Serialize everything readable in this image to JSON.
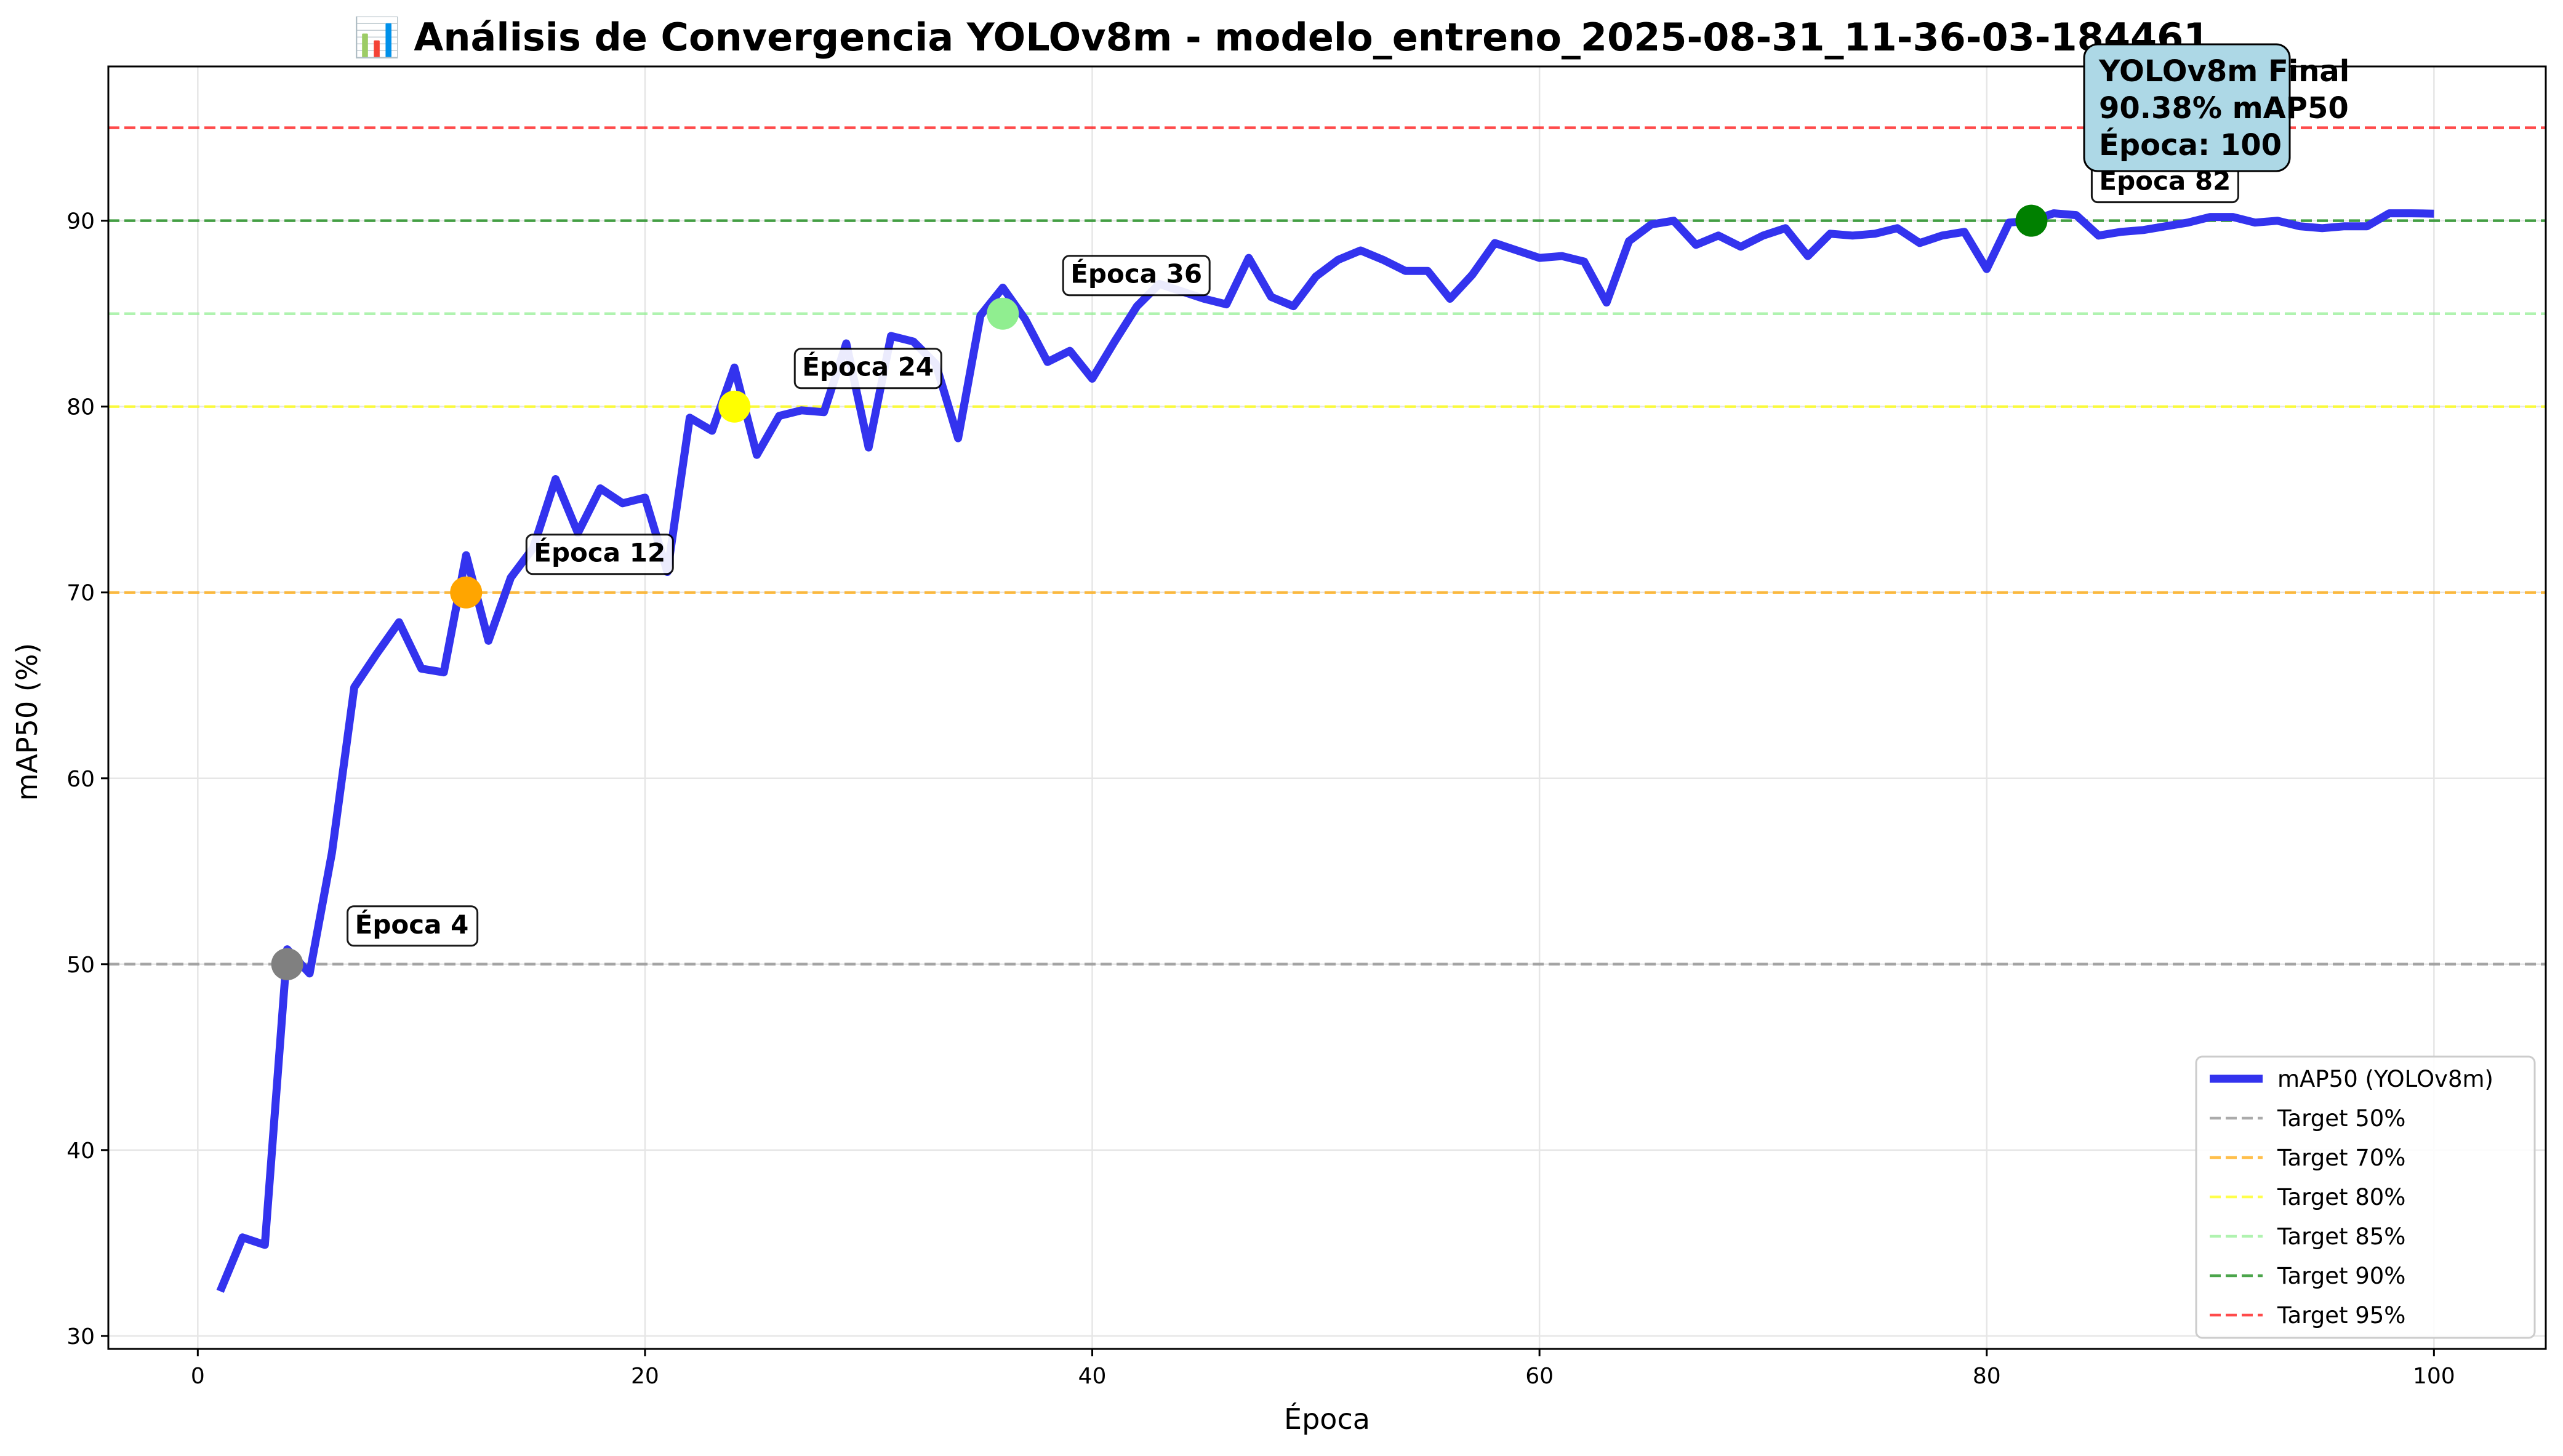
{
  "chart_data": {
    "type": "line",
    "title": "📊 Análisis de Convergencia YOLOv8m - modelo_entreno_2025-08-31_11-36-03-184461",
    "xlabel": "Época",
    "ylabel": "mAP50 (%)",
    "xlim": [
      -4,
      105
    ],
    "ylim": [
      29.3,
      98.3
    ],
    "xticks": [
      0,
      20,
      40,
      60,
      80,
      100
    ],
    "yticks": [
      30,
      40,
      50,
      60,
      70,
      80,
      90
    ],
    "grid": true,
    "legend_position": "lower-right",
    "series": [
      {
        "name": "mAP50 (YOLOv8m)",
        "color": "#3333ee",
        "x": [
          1,
          2,
          3,
          4,
          5,
          6,
          7,
          8,
          9,
          10,
          11,
          12,
          13,
          14,
          15,
          16,
          17,
          18,
          19,
          20,
          21,
          22,
          23,
          24,
          25,
          26,
          27,
          28,
          29,
          30,
          31,
          32,
          33,
          34,
          35,
          36,
          37,
          38,
          39,
          40,
          41,
          42,
          43,
          44,
          45,
          46,
          47,
          48,
          49,
          50,
          51,
          52,
          53,
          54,
          55,
          56,
          57,
          58,
          59,
          60,
          61,
          62,
          63,
          64,
          65,
          66,
          67,
          68,
          69,
          70,
          71,
          72,
          73,
          74,
          75,
          76,
          77,
          78,
          79,
          80,
          81,
          82,
          83,
          84,
          85,
          86,
          87,
          88,
          89,
          90,
          91,
          92,
          93,
          94,
          95,
          96,
          97,
          98,
          99,
          100
        ],
        "values": [
          32.4,
          35.3,
          34.9,
          50.8,
          49.5,
          56.0,
          64.9,
          66.7,
          68.4,
          65.9,
          65.7,
          72.0,
          67.4,
          70.8,
          72.4,
          76.1,
          73.2,
          75.6,
          74.8,
          75.1,
          71.1,
          79.4,
          78.7,
          82.1,
          77.4,
          79.5,
          79.8,
          79.7,
          83.4,
          77.8,
          83.8,
          83.5,
          82.3,
          78.3,
          84.9,
          86.4,
          84.7,
          82.4,
          83.0,
          81.5,
          83.5,
          85.4,
          86.6,
          86.2,
          85.8,
          85.5,
          88.0,
          85.9,
          85.4,
          87.0,
          87.9,
          88.4,
          87.9,
          87.3,
          87.3,
          85.8,
          87.1,
          88.8,
          88.4,
          88.0,
          88.1,
          87.8,
          85.6,
          88.9,
          89.8,
          90.0,
          88.7,
          89.2,
          88.6,
          89.2,
          89.6,
          88.1,
          89.3,
          89.2,
          89.3,
          89.6,
          88.8,
          89.2,
          89.4,
          87.4,
          89.9,
          90.0,
          90.4,
          90.3,
          89.2,
          89.4,
          89.5,
          89.7,
          89.9,
          90.2,
          90.2,
          89.9,
          90.0,
          89.7,
          89.6,
          89.7,
          89.7,
          90.4,
          90.4,
          90.38
        ]
      }
    ],
    "targets": [
      {
        "name": "Target 50%",
        "value": 50,
        "color": "#888888"
      },
      {
        "name": "Target 70%",
        "value": 70,
        "color": "#ffa500"
      },
      {
        "name": "Target 80%",
        "value": 80,
        "color": "#ffff00"
      },
      {
        "name": "Target 85%",
        "value": 85,
        "color": "#90ee90"
      },
      {
        "name": "Target 90%",
        "value": 90,
        "color": "#008000"
      },
      {
        "name": "Target 95%",
        "value": 95,
        "color": "#ff0000"
      }
    ],
    "milestones": [
      {
        "label": "Época 4",
        "x": 4,
        "y": 50,
        "color": "#808080"
      },
      {
        "label": "Época 12",
        "x": 12,
        "y": 70,
        "color": "#ffa500"
      },
      {
        "label": "Época 24",
        "x": 24,
        "y": 80,
        "color": "#ffff00"
      },
      {
        "label": "Época 36",
        "x": 36,
        "y": 85,
        "color": "#90ee90"
      },
      {
        "label": "Época 82",
        "x": 82,
        "y": 90,
        "color": "#008000"
      }
    ],
    "final_annotation": {
      "lines": [
        "YOLOv8m Final",
        "90.38% mAP50",
        "Época: 100"
      ],
      "color": "#add8e6"
    }
  }
}
